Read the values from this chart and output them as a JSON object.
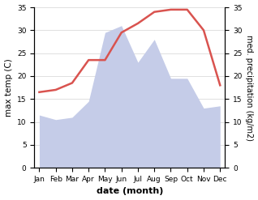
{
  "months": [
    "Jan",
    "Feb",
    "Mar",
    "Apr",
    "May",
    "Jun",
    "Jul",
    "Aug",
    "Sep",
    "Oct",
    "Nov",
    "Dec"
  ],
  "temperature": [
    16.5,
    17.0,
    18.5,
    23.5,
    23.5,
    29.5,
    31.5,
    34.0,
    34.5,
    34.5,
    30.0,
    18.0
  ],
  "precipitation": [
    11.5,
    10.5,
    11.0,
    14.5,
    29.5,
    31.0,
    23.0,
    28.0,
    19.5,
    19.5,
    13.0,
    13.5
  ],
  "temp_color": "#d9534f",
  "precip_fill_color": "#c5cce8",
  "ylim": [
    0,
    35
  ],
  "xlabel": "date (month)",
  "ylabel_left": "max temp (C)",
  "ylabel_right": "med. precipitation (kg/m2)",
  "yticks": [
    0,
    5,
    10,
    15,
    20,
    25,
    30,
    35
  ],
  "tick_fontsize": 6.5,
  "label_fontsize": 7.5,
  "xlabel_fontsize": 8,
  "line_width": 1.8,
  "bg_color": "#f0f0f0"
}
